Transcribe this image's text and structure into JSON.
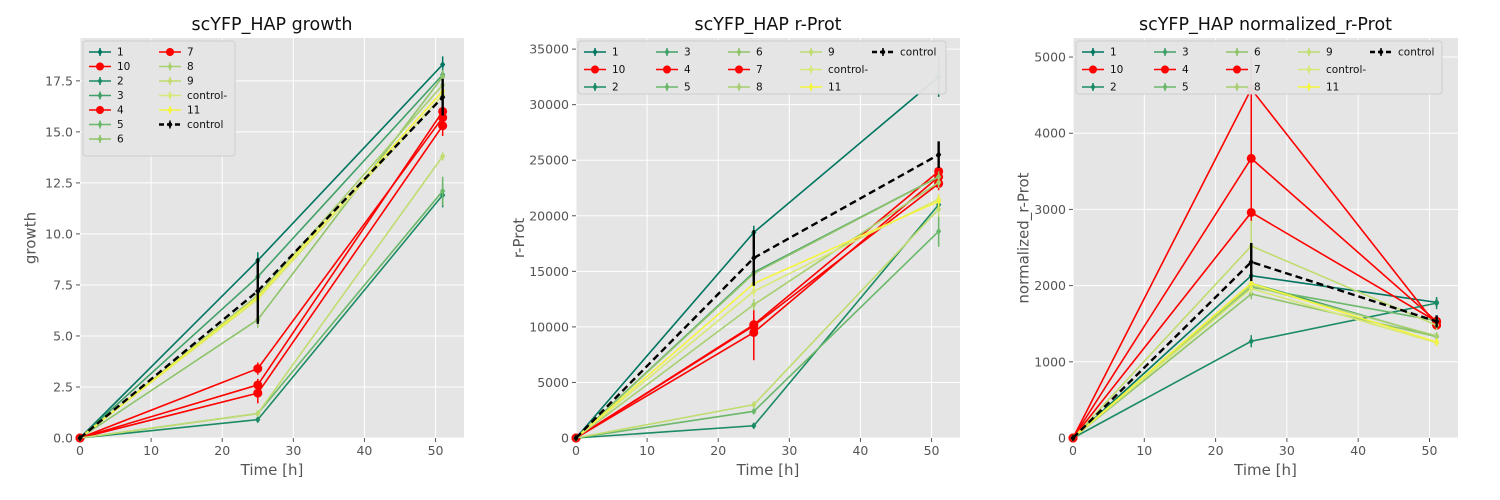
{
  "chart_data": [
    {
      "type": "line",
      "title": "scYFP_HAP growth",
      "xlabel": "Time [h]",
      "ylabel": "growth",
      "xlim": [
        0,
        54
      ],
      "ylim": [
        0,
        19.6
      ],
      "xticks": [
        0,
        10,
        20,
        30,
        40,
        50
      ],
      "yticks": [
        0.0,
        2.5,
        5.0,
        7.5,
        10.0,
        12.5,
        15.0,
        17.5
      ],
      "ytick_labels": [
        "0.0",
        "2.5",
        "5.0",
        "7.5",
        "10.0",
        "12.5",
        "15.0",
        "17.5"
      ],
      "x": [
        0,
        25,
        51
      ],
      "legend_columns": 2,
      "legend_position": "top-left",
      "series": [
        {
          "name": "1",
          "color": "#007660",
          "marker": "diamond",
          "values": [
            0,
            8.7,
            18.3
          ],
          "err": [
            0,
            0.4,
            0.4
          ]
        },
        {
          "name": "10",
          "color": "#ff0000",
          "marker": "circle",
          "values": [
            0,
            2.2,
            15.3
          ],
          "err": [
            0,
            0.5,
            0.5
          ]
        },
        {
          "name": "2",
          "color": "#1a8b62",
          "marker": "diamond",
          "values": [
            0,
            0.9,
            11.9
          ],
          "err": [
            0,
            0.1,
            0.6
          ]
        },
        {
          "name": "3",
          "color": "#40a068",
          "marker": "diamond",
          "values": [
            0,
            7.9,
            17.8
          ],
          "err": [
            0,
            0.3,
            0.3
          ]
        },
        {
          "name": "4",
          "color": "#ff0000",
          "marker": "circle",
          "values": [
            0,
            3.4,
            15.7
          ],
          "err": [
            0,
            0.3,
            0.4
          ]
        },
        {
          "name": "5",
          "color": "#6ab86a",
          "marker": "diamond",
          "values": [
            0,
            1.2,
            12.1
          ],
          "err": [
            0,
            0.1,
            0.7
          ]
        },
        {
          "name": "6",
          "color": "#8fc46a",
          "marker": "diamond",
          "values": [
            0,
            5.8,
            17.7
          ],
          "err": [
            0,
            0.4,
            0.3
          ]
        },
        {
          "name": "7",
          "color": "#ff0000",
          "marker": "circle",
          "values": [
            0,
            2.6,
            16.0
          ],
          "err": [
            0,
            0.3,
            0.4
          ]
        },
        {
          "name": "8",
          "color": "#a8d070",
          "marker": "diamond",
          "values": [
            0,
            7.0,
            17.3
          ],
          "err": [
            0,
            0.3,
            0.3
          ]
        },
        {
          "name": "9",
          "color": "#c0dc70",
          "marker": "diamond",
          "values": [
            0,
            1.2,
            13.8
          ],
          "err": [
            0,
            0.1,
            0.2
          ]
        },
        {
          "name": "control-",
          "color": "#d8e878",
          "marker": "diamond",
          "values": [
            0,
            6.8,
            16.8
          ],
          "err": [
            0,
            0.3,
            0.3
          ]
        },
        {
          "name": "11",
          "color": "#f4f440",
          "marker": "diamond",
          "values": [
            0,
            6.9,
            17.0
          ],
          "err": [
            0,
            0.3,
            0.3
          ]
        },
        {
          "name": "control",
          "color": "#000000",
          "marker": "diamond",
          "dashed": true,
          "values": [
            0,
            7.2,
            16.7
          ],
          "err": [
            0,
            1.6,
            0.9
          ]
        }
      ]
    },
    {
      "type": "line",
      "title": "scYFP_HAP r-Prot",
      "xlabel": "Time [h]",
      "ylabel": "r-Prot",
      "xlim": [
        0,
        54
      ],
      "ylim": [
        0,
        36000
      ],
      "xticks": [
        0,
        10,
        20,
        30,
        40,
        50
      ],
      "yticks": [
        0,
        5000,
        10000,
        15000,
        20000,
        25000,
        30000,
        35000
      ],
      "ytick_labels": [
        "0",
        "5000",
        "10000",
        "15000",
        "20000",
        "25000",
        "30000",
        "35000"
      ],
      "x": [
        0,
        25,
        51
      ],
      "legend_columns": 5,
      "legend_position": "top",
      "series": [
        {
          "name": "1",
          "color": "#007660",
          "marker": "diamond",
          "values": [
            0,
            18500,
            32500
          ],
          "err": [
            0,
            600,
            1800
          ]
        },
        {
          "name": "10",
          "color": "#ff0000",
          "marker": "circle",
          "values": [
            0,
            9500,
            23500
          ],
          "err": [
            0,
            2500,
            600
          ]
        },
        {
          "name": "2",
          "color": "#1a8b62",
          "marker": "diamond",
          "values": [
            0,
            1100,
            21000
          ],
          "err": [
            0,
            100,
            500
          ]
        },
        {
          "name": "3",
          "color": "#40a068",
          "marker": "diamond",
          "values": [
            0,
            14900,
            23500
          ],
          "err": [
            0,
            500,
            500
          ]
        },
        {
          "name": "4",
          "color": "#ff0000",
          "marker": "circle",
          "values": [
            0,
            10200,
            24000
          ],
          "err": [
            0,
            700,
            600
          ]
        },
        {
          "name": "5",
          "color": "#6ab86a",
          "marker": "diamond",
          "values": [
            0,
            2400,
            18600
          ],
          "err": [
            0,
            200,
            1400
          ]
        },
        {
          "name": "6",
          "color": "#8fc46a",
          "marker": "diamond",
          "values": [
            0,
            14800,
            23500
          ],
          "err": [
            0,
            500,
            500
          ]
        },
        {
          "name": "7",
          "color": "#ff0000",
          "marker": "circle",
          "values": [
            0,
            10100,
            22900
          ],
          "err": [
            0,
            600,
            600
          ]
        },
        {
          "name": "8",
          "color": "#a8d070",
          "marker": "diamond",
          "values": [
            0,
            12000,
            23000
          ],
          "err": [
            0,
            500,
            500
          ]
        },
        {
          "name": "9",
          "color": "#c0dc70",
          "marker": "diamond",
          "values": [
            0,
            3000,
            20600
          ],
          "err": [
            0,
            300,
            700
          ]
        },
        {
          "name": "control-",
          "color": "#d8e878",
          "marker": "diamond",
          "values": [
            0,
            13200,
            21500
          ],
          "err": [
            0,
            500,
            500
          ]
        },
        {
          "name": "11",
          "color": "#f4f440",
          "marker": "diamond",
          "values": [
            0,
            13900,
            21300
          ],
          "err": [
            0,
            500,
            500
          ]
        },
        {
          "name": "control",
          "color": "#000000",
          "marker": "diamond",
          "dashed": true,
          "values": [
            0,
            16200,
            25500
          ],
          "err": [
            0,
            2500,
            1200
          ]
        }
      ]
    },
    {
      "type": "line",
      "title": "scYFP_HAP normalized_r-Prot",
      "xlabel": "Time [h]",
      "ylabel": "normalized_r-Prot",
      "xlim": [
        0,
        54
      ],
      "ylim": [
        0,
        5250
      ],
      "xticks": [
        0,
        10,
        20,
        30,
        40,
        50
      ],
      "yticks": [
        0,
        1000,
        2000,
        3000,
        4000,
        5000
      ],
      "ytick_labels": [
        "0",
        "1000",
        "2000",
        "3000",
        "4000",
        "5000"
      ],
      "x": [
        0,
        25,
        51
      ],
      "legend_columns": 5,
      "legend_position": "top",
      "series": [
        {
          "name": "1",
          "color": "#007660",
          "marker": "diamond",
          "values": [
            0,
            2130,
            1780
          ],
          "err": [
            0,
            80,
            60
          ]
        },
        {
          "name": "10",
          "color": "#ff0000",
          "marker": "circle",
          "values": [
            0,
            3670,
            1530
          ],
          "err": [
            0,
            570,
            60
          ]
        },
        {
          "name": "2",
          "color": "#1a8b62",
          "marker": "diamond",
          "values": [
            0,
            1270,
            1770
          ],
          "err": [
            0,
            80,
            80
          ]
        },
        {
          "name": "3",
          "color": "#40a068",
          "marker": "diamond",
          "values": [
            0,
            2030,
            1330
          ],
          "err": [
            0,
            70,
            50
          ]
        },
        {
          "name": "4",
          "color": "#ff0000",
          "marker": "circle",
          "values": [
            0,
            2960,
            1530
          ],
          "err": [
            0,
            150,
            60
          ]
        },
        {
          "name": "5",
          "color": "#6ab86a",
          "marker": "diamond",
          "values": [
            0,
            1980,
            1540
          ],
          "err": [
            0,
            100,
            60
          ]
        },
        {
          "name": "6",
          "color": "#8fc46a",
          "marker": "diamond",
          "values": [
            0,
            1890,
            1330
          ],
          "err": [
            0,
            70,
            50
          ]
        },
        {
          "name": "7",
          "color": "#ff0000",
          "marker": "circle",
          "values": [
            0,
            4580,
            1480
          ],
          "err": [
            0,
            430,
            60
          ]
        },
        {
          "name": "8",
          "color": "#a8d070",
          "marker": "diamond",
          "values": [
            0,
            2000,
            1340
          ],
          "err": [
            0,
            70,
            50
          ]
        },
        {
          "name": "9",
          "color": "#c0dc70",
          "marker": "diamond",
          "values": [
            0,
            2520,
            1480
          ],
          "err": [
            0,
            330,
            60
          ]
        },
        {
          "name": "control-",
          "color": "#d8e878",
          "marker": "diamond",
          "values": [
            0,
            1960,
            1250
          ],
          "err": [
            0,
            70,
            50
          ]
        },
        {
          "name": "11",
          "color": "#f4f440",
          "marker": "diamond",
          "values": [
            0,
            2030,
            1260
          ],
          "err": [
            0,
            70,
            50
          ]
        },
        {
          "name": "control",
          "color": "#000000",
          "marker": "diamond",
          "dashed": true,
          "values": [
            0,
            2310,
            1530
          ],
          "err": [
            0,
            250,
            80
          ]
        }
      ]
    }
  ]
}
